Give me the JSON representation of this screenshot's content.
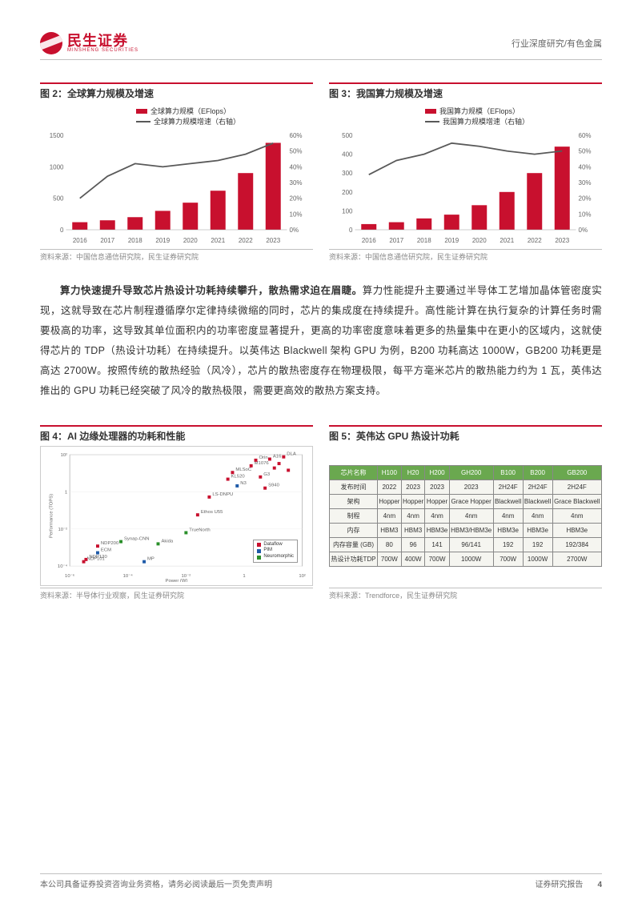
{
  "header": {
    "brand_cn": "民生证券",
    "brand_en": "MINSHENG SECURITIES",
    "right": "行业深度研究/有色金属"
  },
  "fig2": {
    "title": "图 2：全球算力规模及增速",
    "legend_bar": "全球算力规模（EFlops）",
    "legend_line": "全球算力规模增速（右轴）",
    "categories": [
      "2016",
      "2017",
      "2018",
      "2019",
      "2020",
      "2021",
      "2022",
      "2023"
    ],
    "bars": [
      120,
      150,
      200,
      300,
      430,
      620,
      900,
      1380
    ],
    "line": [
      20,
      34,
      42,
      40,
      42,
      44,
      48,
      55
    ],
    "ylim": [
      0,
      1500
    ],
    "ytick": 500,
    "y2lim": [
      0,
      60
    ],
    "y2tick": 10,
    "bar_color": "#c8102e",
    "line_color": "#595959",
    "bg": "#ffffff",
    "src": "资料来源：中国信息通信研究院，民生证券研究院"
  },
  "fig3": {
    "title": "图 3：我国算力规模及增速",
    "legend_bar": "我国算力规模（EFlops）",
    "legend_line": "我国算力规模增速（右轴）",
    "categories": [
      "2016",
      "2017",
      "2018",
      "2019",
      "2020",
      "2021",
      "2022",
      "2023"
    ],
    "bars": [
      30,
      40,
      60,
      80,
      130,
      200,
      300,
      440
    ],
    "line": [
      35,
      44,
      48,
      55,
      53,
      50,
      48,
      50
    ],
    "ylim": [
      0,
      500
    ],
    "ytick": 100,
    "y2lim": [
      0,
      60
    ],
    "y2tick": 10,
    "bar_color": "#c8102e",
    "line_color": "#595959",
    "bg": "#ffffff",
    "src": "资料来源：中国信息通信研究院，民生证券研究院"
  },
  "body": {
    "bold": "算力快速提升导致芯片热设计功耗持续攀升，散热需求迫在眉睫。",
    "rest": "算力性能提升主要通过半导体工艺增加晶体管密度实现，这就导致在芯片制程遵循摩尔定律持续微缩的同时，芯片的集成度在持续提升。高性能计算在执行复杂的计算任务时需要极高的功率，这导致其单位面积内的功率密度显著提升，更高的功率密度意味着更多的热量集中在更小的区域内，这就使得芯片的 TDP（热设计功耗）在持续提升。以英伟达 Blackwell 架构 GPU 为例，B200 功耗高达 1000W，GB200 功耗更是高达 2700W。按照传统的散热经验（风冷），芯片的散热密度存在物理极限，每平方毫米芯片的散热能力约为 1 瓦，英伟达推出的 GPU 功耗已经突破了风冷的散热极限，需要更高效的散热方案支持。"
  },
  "fig4": {
    "title": "图 4：AI 边缘处理器的功耗和性能",
    "xlabel": "Power (W)",
    "ylabel": "Performance (TOPS)",
    "xticks": [
      "10⁻⁶",
      "10⁻⁴",
      "10⁻²",
      "1",
      "10²"
    ],
    "yticks": [
      "10⁻⁴",
      "10⁻²",
      "1",
      "10²"
    ],
    "legend": [
      "Dataflow",
      "PIM",
      "Neuromorphic"
    ],
    "colors": {
      "Dataflow": "#c8102e",
      "PIM": "#1e5aa8",
      "Neuromorphic": "#2a8f2a"
    },
    "points": [
      {
        "x": 0.06,
        "y": 0.04,
        "c": "#c8102e",
        "lbl": "NDP101"
      },
      {
        "x": 0.07,
        "y": 0.06,
        "c": "#c8102e",
        "lbl": "NDP120"
      },
      {
        "x": 0.12,
        "y": 0.12,
        "c": "#1e5aa8",
        "lbl": "ECM"
      },
      {
        "x": 0.12,
        "y": 0.18,
        "c": "#c8102e",
        "lbl": "NDP200"
      },
      {
        "x": 0.22,
        "y": 0.22,
        "c": "#2a8f2a",
        "lbl": "Synap-CNN"
      },
      {
        "x": 0.32,
        "y": 0.04,
        "c": "#1e5aa8",
        "lbl": "MP"
      },
      {
        "x": 0.38,
        "y": 0.2,
        "c": "#2a8f2a",
        "lbl": "Akida"
      },
      {
        "x": 0.5,
        "y": 0.3,
        "c": "#2a8f2a",
        "lbl": "TrueNorth"
      },
      {
        "x": 0.55,
        "y": 0.46,
        "c": "#c8102e",
        "lbl": "Ethos U55"
      },
      {
        "x": 0.6,
        "y": 0.62,
        "c": "#c8102e",
        "lbl": "LS-DNPU"
      },
      {
        "x": 0.68,
        "y": 0.78,
        "c": "#c8102e",
        "lbl": "KL520"
      },
      {
        "x": 0.7,
        "y": 0.84,
        "c": "#c8102e",
        "lbl": "MLSoC"
      },
      {
        "x": 0.72,
        "y": 0.72,
        "c": "#1e5aa8",
        "lbl": "N3"
      },
      {
        "x": 0.78,
        "y": 0.9,
        "c": "#c8102e",
        "lbl": "M1076"
      },
      {
        "x": 0.8,
        "y": 0.95,
        "c": "#c8102e",
        "lbl": "Orin"
      },
      {
        "x": 0.82,
        "y": 0.8,
        "c": "#c8102e",
        "lbl": "G3"
      },
      {
        "x": 0.84,
        "y": 0.7,
        "c": "#c8102e",
        "lbl": "S940"
      },
      {
        "x": 0.86,
        "y": 0.96,
        "c": "#c8102e",
        "lbl": "A16"
      },
      {
        "x": 0.88,
        "y": 0.88,
        "c": "#c8102e",
        "lbl": ""
      },
      {
        "x": 0.9,
        "y": 0.92,
        "c": "#c8102e",
        "lbl": ""
      },
      {
        "x": 0.92,
        "y": 0.98,
        "c": "#c8102e",
        "lbl": "DLA"
      },
      {
        "x": 0.94,
        "y": 0.86,
        "c": "#c8102e",
        "lbl": ""
      }
    ],
    "src": "资料来源：半导体行业观察，民生证券研究院"
  },
  "fig5": {
    "title": "图 5：英伟达 GPU 热设计功耗",
    "header": [
      "芯片名称",
      "H100",
      "H20",
      "H200",
      "GH200",
      "B100",
      "B200",
      "GB200"
    ],
    "rows": [
      [
        "发布时间",
        "2022",
        "2023",
        "2023",
        "2023",
        "2H24F",
        "2H24F",
        "2H24F"
      ],
      [
        "架构",
        "Hopper",
        "Hopper",
        "Hopper",
        "Grace Hopper",
        "Blackwell",
        "Blackwell",
        "Grace Blackwell"
      ],
      [
        "制程",
        "4nm",
        "4nm",
        "4nm",
        "4nm",
        "4nm",
        "4nm",
        "4nm"
      ],
      [
        "内存",
        "HBM3",
        "HBM3",
        "HBM3e",
        "HBM3/HBM3e",
        "HBM3e",
        "HBM3e",
        "HBM3e"
      ],
      [
        "内存容量 (GB)",
        "80",
        "96",
        "141",
        "96/141",
        "192",
        "192",
        "192/384"
      ],
      [
        "热设计功耗TDP",
        "700W",
        "400W",
        "700W",
        "1000W",
        "700W",
        "1000W",
        "2700W"
      ]
    ],
    "header_bg": "#6aa84f",
    "header_fg": "#ffffff",
    "cell_bg": "#f5f5f0",
    "border": "#888888",
    "src": "资料来源：Trendforce，民生证券研究院"
  },
  "footer": {
    "left": "本公司具备证券投资咨询业务资格，请务必阅读最后一页免责声明",
    "right": "证券研究报告",
    "page": "4"
  }
}
